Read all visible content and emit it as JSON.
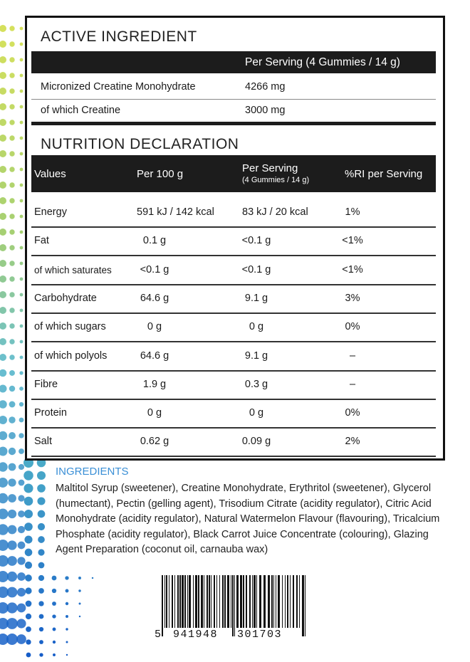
{
  "active": {
    "title": "ACTIVE INGREDIENT",
    "header": "Per Serving (4 Gummies / 14 g)",
    "rows": [
      [
        "Micronized Creatine Monohydrate",
        "4266 mg"
      ],
      [
        "of which Creatine",
        "3000 mg"
      ]
    ]
  },
  "nutrition": {
    "title": "NUTRITION DECLARATION",
    "header": {
      "values": "Values",
      "per_100": "Per 100 g",
      "per_serving": "Per Serving",
      "serving_note": "(4 Gummies / 14 g)",
      "ri": "%RI per Serving"
    },
    "rows": [
      [
        "Energy",
        "591 kJ / 142 kcal",
        "83 kJ / 20 kcal",
        "1%"
      ],
      [
        "Fat",
        "0.1 g",
        "<0.1 g",
        "<1%"
      ],
      [
        "of which saturates",
        "<0.1 g",
        "<0.1 g",
        "<1%"
      ],
      [
        "Carbohydrate",
        "64.6 g",
        "9.1 g",
        "3%"
      ],
      [
        "of which sugars",
        "0 g",
        "0 g",
        "0%"
      ],
      [
        "of which polyols",
        "64.6 g",
        "9.1 g",
        "–"
      ],
      [
        "Fibre",
        "1.9 g",
        "0.3 g",
        "–"
      ],
      [
        "Protein",
        "0 g",
        "0 g",
        "0%"
      ],
      [
        "Salt",
        "0.62 g",
        "0.09 g",
        "2%"
      ]
    ]
  },
  "ingredients": {
    "title": "INGREDIENTS",
    "text": "Maltitol Syrup (sweetener), Creatine Monohydrate, Erythritol (sweetener), Glycerol (humectant), Pectin (gelling agent), Trisodium Citrate (acidity regulator), Citric Acid Monohydrate (acidity regulator), Natural Watermelon Flavour (flavouring), Tricalcium Phosphate (acidity regulator), Black Carrot Juice Concentrate (colouring), Glazing Agent Preparation (coconut oil, carnauba wax)"
  },
  "barcode": [
    "5",
    "941948",
    "301703"
  ]
}
